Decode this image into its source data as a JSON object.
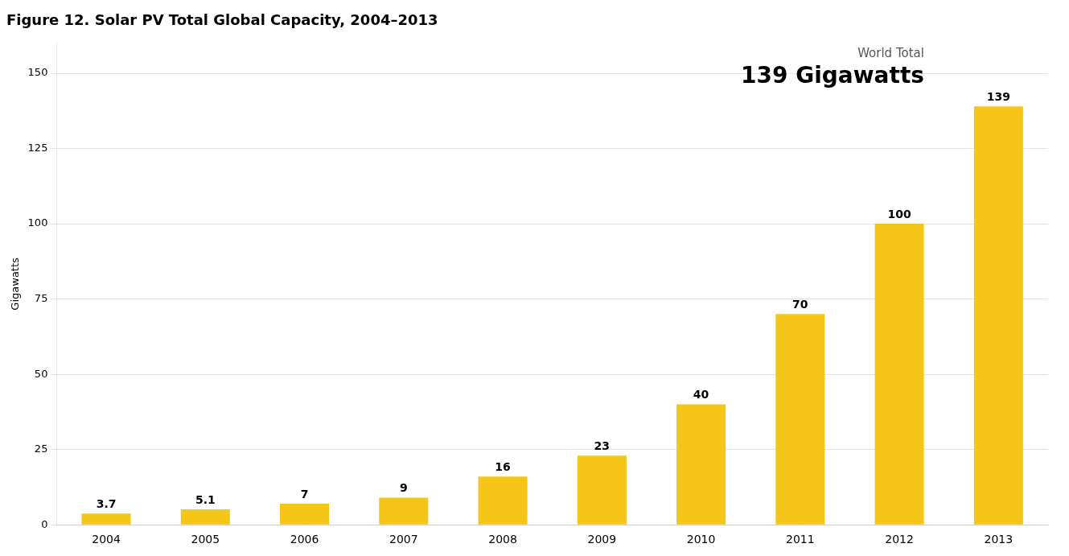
{
  "chart_data": {
    "type": "bar",
    "title": "Figure 12. Solar PV Total Global Capacity, 2004–2013",
    "ylabel": "Gigawatts",
    "categories": [
      "2004",
      "2005",
      "2006",
      "2007",
      "2008",
      "2009",
      "2010",
      "2011",
      "2012",
      "2013"
    ],
    "values": [
      3.7,
      5.1,
      7,
      9,
      16,
      23,
      40,
      70,
      100,
      139
    ],
    "color": "#F5C518",
    "data_labels": true,
    "annotations": [
      "World Total",
      "139 Gigawatts"
    ],
    "ylim": [
      0,
      160
    ],
    "yticks": [
      0,
      25,
      50,
      75,
      100,
      125,
      150
    ],
    "grid": true
  }
}
